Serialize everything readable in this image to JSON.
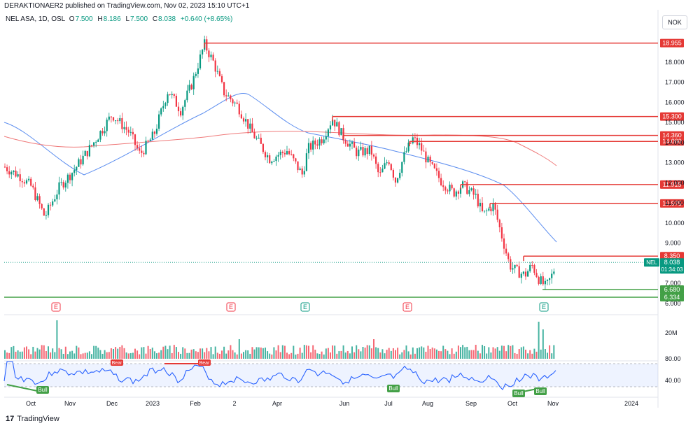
{
  "header": {
    "publisher_line": "DERAKTIONAER2 published on TradingView.com, Nov 02, 2023 15:10 UTC+1"
  },
  "symbol_bar": {
    "title": "NEL ASA, 1D, OSL",
    "o_label": "O",
    "o_value": "7.500",
    "h_label": "H",
    "h_value": "8.186",
    "l_label": "L",
    "l_value": "7.500",
    "c_label": "C",
    "c_value": "8.038",
    "change": "+0.640 (+8.65%)"
  },
  "currency_button": "NOK",
  "price_axis": {
    "ticks": [
      "18.000",
      "17.000",
      "16.000",
      "15.000",
      "14.000",
      "13.000",
      "12.000",
      "11.000",
      "10.000",
      "9.000",
      "7.000",
      "6.000"
    ],
    "resistance_badges": [
      "18.955",
      "15.300",
      "14.360",
      "14.060",
      "11.915",
      "10.975",
      "8.350"
    ],
    "support_badges": [
      "6.680",
      "6.334"
    ],
    "last_price": "8.038",
    "last_price_symbol": "NEL",
    "countdown": "01:34:03"
  },
  "volume_axis": {
    "tick": "20M"
  },
  "rsi_axis": {
    "ticks": [
      "80.00",
      "40.00"
    ]
  },
  "time_axis": {
    "labels": [
      "Oct",
      "Nov",
      "Dec",
      "2023",
      "Feb",
      "2",
      "Apr",
      "Jun",
      "Jul",
      "Aug",
      "Sep",
      "Oct",
      "Nov",
      "2024"
    ]
  },
  "earnings_markers": [
    {
      "letter": "E",
      "type": "negative"
    },
    {
      "letter": "E",
      "type": "negative"
    },
    {
      "letter": "E",
      "type": "positive"
    },
    {
      "letter": "E",
      "type": "negative"
    },
    {
      "letter": "E",
      "type": "positive"
    }
  ],
  "rsi_labels": {
    "bull": [
      "Bull",
      "Bull",
      "Bull",
      "Bull"
    ],
    "bear": [
      "Bear",
      "Bear"
    ]
  },
  "colors": {
    "up": "#089981",
    "down": "#f23645",
    "resistance": "#e53935",
    "support": "#43a047",
    "ma_fast": "#5b8def",
    "ma_slow": "#ef7a7a",
    "rsi": "#2962ff"
  },
  "footer": {
    "brand": "TradingView",
    "logo": "17"
  }
}
